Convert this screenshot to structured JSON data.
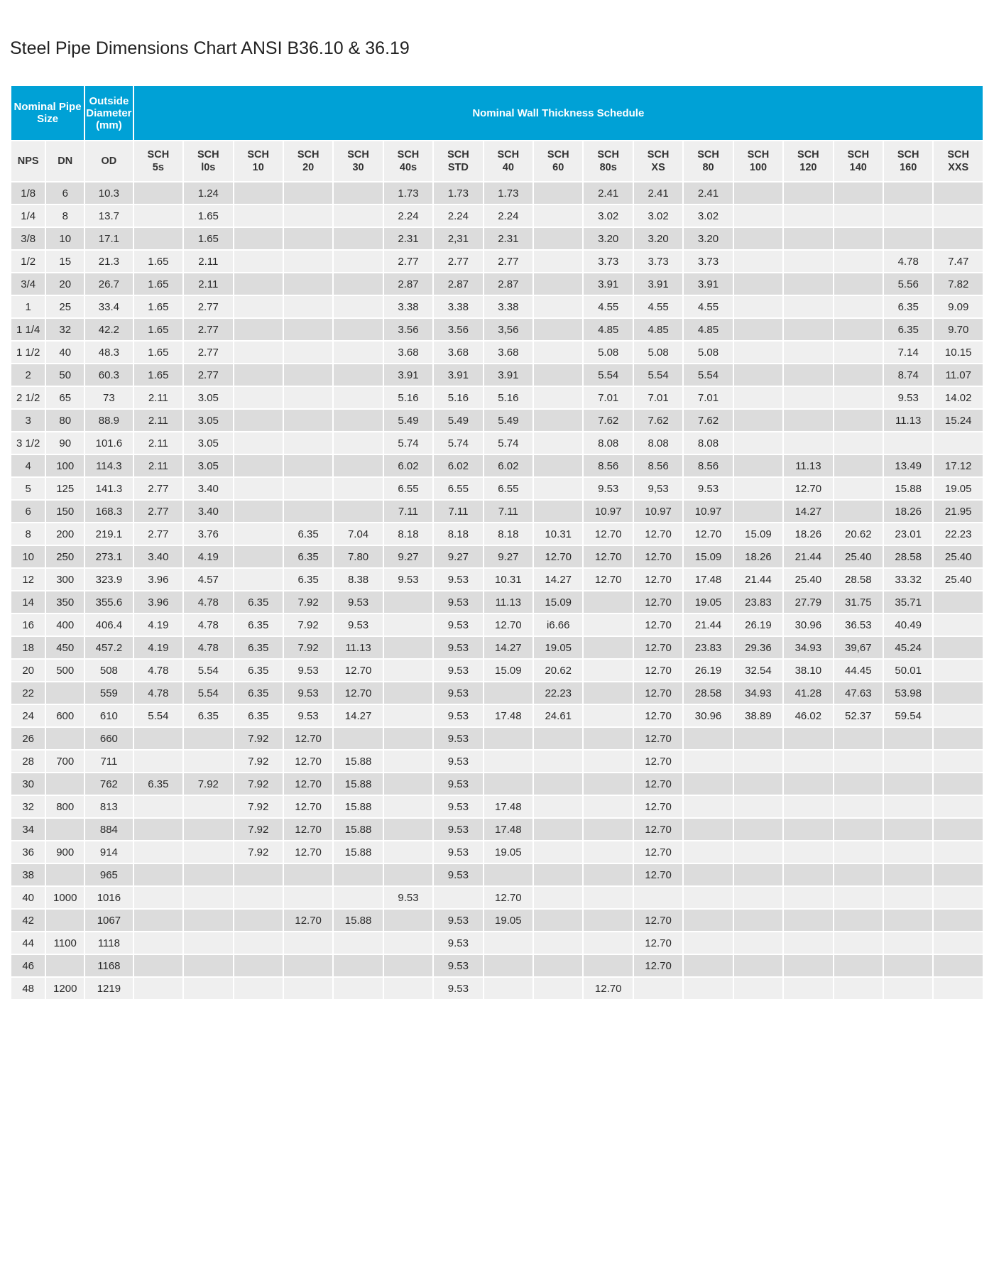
{
  "title": "Steel Pipe Dimensions Chart ANSI B36.10 & 36.19",
  "colors": {
    "header_bg": "#00a1d6",
    "header_fg": "#ffffff",
    "sub_bg": "#efefef",
    "row_dark": "#dcdcdc",
    "row_light": "#efefef",
    "text": "#2a2a2a"
  },
  "group_headers": {
    "nominal_pipe_size": "Nominal Pipe Size",
    "outside_diameter": "Outside Diameter (mm)",
    "wall_thickness": "Nominal Wall Thickness Schedule"
  },
  "sub_headers": [
    "NPS",
    "DN",
    "OD",
    "SCH 5s",
    "SCH l0s",
    "SCH 10",
    "SCH 20",
    "SCH 30",
    "SCH 40s",
    "SCH STD",
    "SCH 40",
    "SCH 60",
    "SCH 80s",
    "SCH XS",
    "SCH 80",
    "SCH 100",
    "SCH 120",
    "SCH 140",
    "SCH 160",
    "SCH XXS"
  ],
  "rows": [
    [
      "1/8",
      "6",
      "10.3",
      "",
      "1.24",
      "",
      "",
      "",
      "1.73",
      "1.73",
      "1.73",
      "",
      "2.41",
      "2.41",
      "2.41",
      "",
      "",
      "",
      "",
      ""
    ],
    [
      "1/4",
      "8",
      "13.7",
      "",
      "1.65",
      "",
      "",
      "",
      "2.24",
      "2.24",
      "2.24",
      "",
      "3.02",
      "3.02",
      "3.02",
      "",
      "",
      "",
      "",
      ""
    ],
    [
      "3/8",
      "10",
      "17.1",
      "",
      "1.65",
      "",
      "",
      "",
      "2.31",
      "2,31",
      "2.31",
      "",
      "3.20",
      "3.20",
      "3.20",
      "",
      "",
      "",
      "",
      ""
    ],
    [
      "1/2",
      "15",
      "21.3",
      "1.65",
      "2.11",
      "",
      "",
      "",
      "2.77",
      "2.77",
      "2.77",
      "",
      "3.73",
      "3.73",
      "3.73",
      "",
      "",
      "",
      "4.78",
      "7.47"
    ],
    [
      "3/4",
      "20",
      "26.7",
      "1.65",
      "2.11",
      "",
      "",
      "",
      "2.87",
      "2.87",
      "2.87",
      "",
      "3.91",
      "3.91",
      "3.91",
      "",
      "",
      "",
      "5.56",
      "7.82"
    ],
    [
      "1",
      "25",
      "33.4",
      "1.65",
      "2.77",
      "",
      "",
      "",
      "3.38",
      "3.38",
      "3.38",
      "",
      "4.55",
      "4.55",
      "4.55",
      "",
      "",
      "",
      "6.35",
      "9.09"
    ],
    [
      "1 1/4",
      "32",
      "42.2",
      "1.65",
      "2.77",
      "",
      "",
      "",
      "3.56",
      "3.56",
      "3,56",
      "",
      "4.85",
      "4.85",
      "4.85",
      "",
      "",
      "",
      "6.35",
      "9.70"
    ],
    [
      "1 1/2",
      "40",
      "48.3",
      "1.65",
      "2.77",
      "",
      "",
      "",
      "3.68",
      "3.68",
      "3.68",
      "",
      "5.08",
      "5.08",
      "5.08",
      "",
      "",
      "",
      "7.14",
      "10.15"
    ],
    [
      "2",
      "50",
      "60.3",
      "1.65",
      "2.77",
      "",
      "",
      "",
      "3.91",
      "3.91",
      "3.91",
      "",
      "5.54",
      "5.54",
      "5.54",
      "",
      "",
      "",
      "8.74",
      "11.07"
    ],
    [
      "2 1/2",
      "65",
      "73",
      "2.11",
      "3.05",
      "",
      "",
      "",
      "5.16",
      "5.16",
      "5.16",
      "",
      "7.01",
      "7.01",
      "7.01",
      "",
      "",
      "",
      "9.53",
      "14.02"
    ],
    [
      "3",
      "80",
      "88.9",
      "2.11",
      "3.05",
      "",
      "",
      "",
      "5.49",
      "5.49",
      "5.49",
      "",
      "7.62",
      "7.62",
      "7.62",
      "",
      "",
      "",
      "11.13",
      "15.24"
    ],
    [
      "3 1/2",
      "90",
      "101.6",
      "2.11",
      "3.05",
      "",
      "",
      "",
      "5.74",
      "5.74",
      "5.74",
      "",
      "8.08",
      "8.08",
      "8.08",
      "",
      "",
      "",
      "",
      ""
    ],
    [
      "4",
      "100",
      "114.3",
      "2.11",
      "3.05",
      "",
      "",
      "",
      "6.02",
      "6.02",
      "6.02",
      "",
      "8.56",
      "8.56",
      "8.56",
      "",
      "11.13",
      "",
      "13.49",
      "17.12"
    ],
    [
      "5",
      "125",
      "141.3",
      "2.77",
      "3.40",
      "",
      "",
      "",
      "6.55",
      "6.55",
      "6.55",
      "",
      "9.53",
      "9,53",
      "9.53",
      "",
      "12.70",
      "",
      "15.88",
      "19.05"
    ],
    [
      "6",
      "150",
      "168.3",
      "2.77",
      "3.40",
      "",
      "",
      "",
      "7.11",
      "7.11",
      "7.11",
      "",
      "10.97",
      "10.97",
      "10.97",
      "",
      "14.27",
      "",
      "18.26",
      "21.95"
    ],
    [
      "8",
      "200",
      "219.1",
      "2.77",
      "3.76",
      "",
      "6.35",
      "7.04",
      "8.18",
      "8.18",
      "8.18",
      "10.31",
      "12.70",
      "12.70",
      "12.70",
      "15.09",
      "18.26",
      "20.62",
      "23.01",
      "22.23"
    ],
    [
      "10",
      "250",
      "273.1",
      "3.40",
      "4.19",
      "",
      "6.35",
      "7.80",
      "9.27",
      "9.27",
      "9.27",
      "12.70",
      "12.70",
      "12.70",
      "15.09",
      "18.26",
      "21.44",
      "25.40",
      "28.58",
      "25.40"
    ],
    [
      "12",
      "300",
      "323.9",
      "3.96",
      "4.57",
      "",
      "6.35",
      "8.38",
      "9.53",
      "9.53",
      "10.31",
      "14.27",
      "12.70",
      "12.70",
      "17.48",
      "21.44",
      "25.40",
      "28.58",
      "33.32",
      "25.40"
    ],
    [
      "14",
      "350",
      "355.6",
      "3.96",
      "4.78",
      "6.35",
      "7.92",
      "9.53",
      "",
      "9.53",
      "11.13",
      "15.09",
      "",
      "12.70",
      "19.05",
      "23.83",
      "27.79",
      "31.75",
      "35.71",
      ""
    ],
    [
      "16",
      "400",
      "406.4",
      "4.19",
      "4.78",
      "6.35",
      "7.92",
      "9.53",
      "",
      "9.53",
      "12.70",
      "i6.66",
      "",
      "12.70",
      "21.44",
      "26.19",
      "30.96",
      "36.53",
      "40.49",
      ""
    ],
    [
      "18",
      "450",
      "457.2",
      "4.19",
      "4.78",
      "6.35",
      "7.92",
      "11.13",
      "",
      "9.53",
      "14.27",
      "19.05",
      "",
      "12.70",
      "23.83",
      "29.36",
      "34.93",
      "39,67",
      "45.24",
      ""
    ],
    [
      "20",
      "500",
      "508",
      "4.78",
      "5.54",
      "6.35",
      "9.53",
      "12.70",
      "",
      "9.53",
      "15.09",
      "20.62",
      "",
      "12.70",
      "26.19",
      "32.54",
      "38.10",
      "44.45",
      "50.01",
      ""
    ],
    [
      "22",
      "",
      "559",
      "4.78",
      "5.54",
      "6.35",
      "9.53",
      "12.70",
      "",
      "9.53",
      "",
      "22.23",
      "",
      "12.70",
      "28.58",
      "34.93",
      "41.28",
      "47.63",
      "53.98",
      ""
    ],
    [
      "24",
      "600",
      "610",
      "5.54",
      "6.35",
      "6.35",
      "9.53",
      "14.27",
      "",
      "9.53",
      "17.48",
      "24.61",
      "",
      "12.70",
      "30.96",
      "38.89",
      "46.02",
      "52.37",
      "59.54",
      ""
    ],
    [
      "26",
      "",
      "660",
      "",
      "",
      "7.92",
      "12.70",
      "",
      "",
      "9.53",
      "",
      "",
      "",
      "12.70",
      "",
      "",
      "",
      "",
      "",
      ""
    ],
    [
      "28",
      "700",
      "711",
      "",
      "",
      "7.92",
      "12.70",
      "15.88",
      "",
      "9.53",
      "",
      "",
      "",
      "12.70",
      "",
      "",
      "",
      "",
      "",
      ""
    ],
    [
      "30",
      "",
      "762",
      "6.35",
      "7.92",
      "7.92",
      "12.70",
      "15.88",
      "",
      "9.53",
      "",
      "",
      "",
      "12.70",
      "",
      "",
      "",
      "",
      "",
      ""
    ],
    [
      "32",
      "800",
      "813",
      "",
      "",
      "7.92",
      "12.70",
      "15.88",
      "",
      "9.53",
      "17.48",
      "",
      "",
      "12.70",
      "",
      "",
      "",
      "",
      "",
      ""
    ],
    [
      "34",
      "",
      "884",
      "",
      "",
      "7.92",
      "12.70",
      "15.88",
      "",
      "9.53",
      "17.48",
      "",
      "",
      "12.70",
      "",
      "",
      "",
      "",
      "",
      ""
    ],
    [
      "36",
      "900",
      "914",
      "",
      "",
      "7.92",
      "12.70",
      "15.88",
      "",
      "9.53",
      "19.05",
      "",
      "",
      "12.70",
      "",
      "",
      "",
      "",
      "",
      ""
    ],
    [
      "38",
      "",
      "965",
      "",
      "",
      "",
      "",
      "",
      "",
      "9.53",
      "",
      "",
      "",
      "12.70",
      "",
      "",
      "",
      "",
      "",
      ""
    ],
    [
      "40",
      "1000",
      "1016",
      "",
      "",
      "",
      "",
      "",
      "9.53",
      "",
      "12.70",
      "",
      "",
      "",
      "",
      "",
      "",
      "",
      "",
      ""
    ],
    [
      "42",
      "",
      "1067",
      "",
      "",
      "",
      "12.70",
      "15.88",
      "",
      "9.53",
      "19.05",
      "",
      "",
      "12.70",
      "",
      "",
      "",
      "",
      "",
      ""
    ],
    [
      "44",
      "1100",
      "1118",
      "",
      "",
      "",
      "",
      "",
      "",
      "9.53",
      "",
      "",
      "",
      "12.70",
      "",
      "",
      "",
      "",
      "",
      ""
    ],
    [
      "46",
      "",
      "1168",
      "",
      "",
      "",
      "",
      "",
      "",
      "9.53",
      "",
      "",
      "",
      "12.70",
      "",
      "",
      "",
      "",
      "",
      ""
    ],
    [
      "48",
      "1200",
      "1219",
      "",
      "",
      "",
      "",
      "",
      "",
      "9.53",
      "",
      "",
      "12.70",
      "",
      "",
      "",
      "",
      "",
      "",
      ""
    ]
  ]
}
